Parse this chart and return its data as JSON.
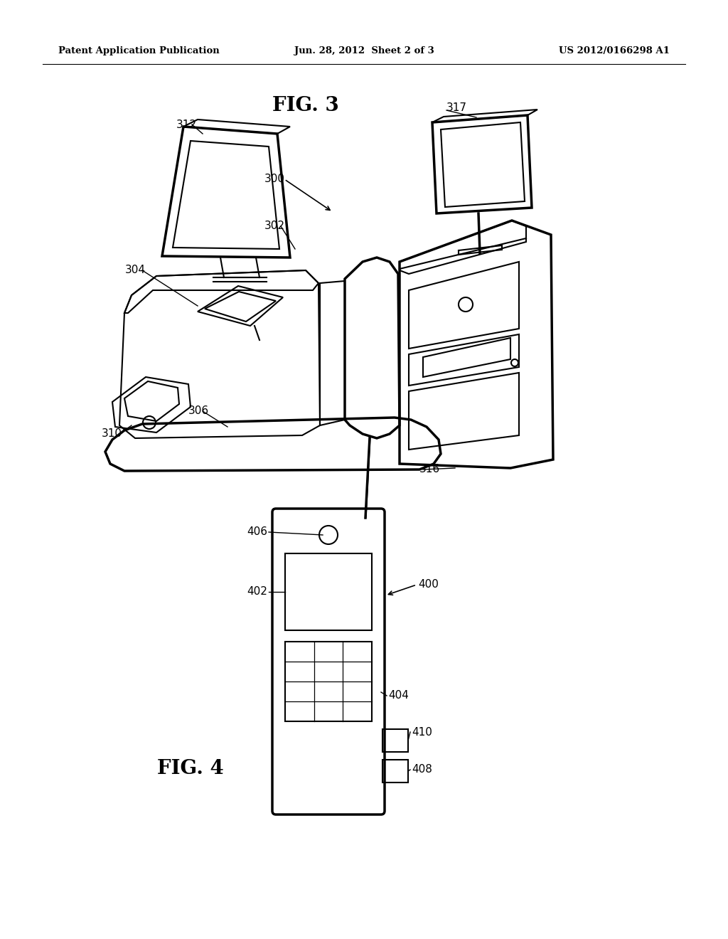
{
  "bg_color": "#ffffff",
  "header_left": "Patent Application Publication",
  "header_mid": "Jun. 28, 2012  Sheet 2 of 3",
  "header_right": "US 2012/0166298 A1",
  "fig3_title": "FIG. 3",
  "fig4_title": "FIG. 4",
  "line_color": "#000000",
  "lw": 1.5,
  "lw_thick": 2.5
}
